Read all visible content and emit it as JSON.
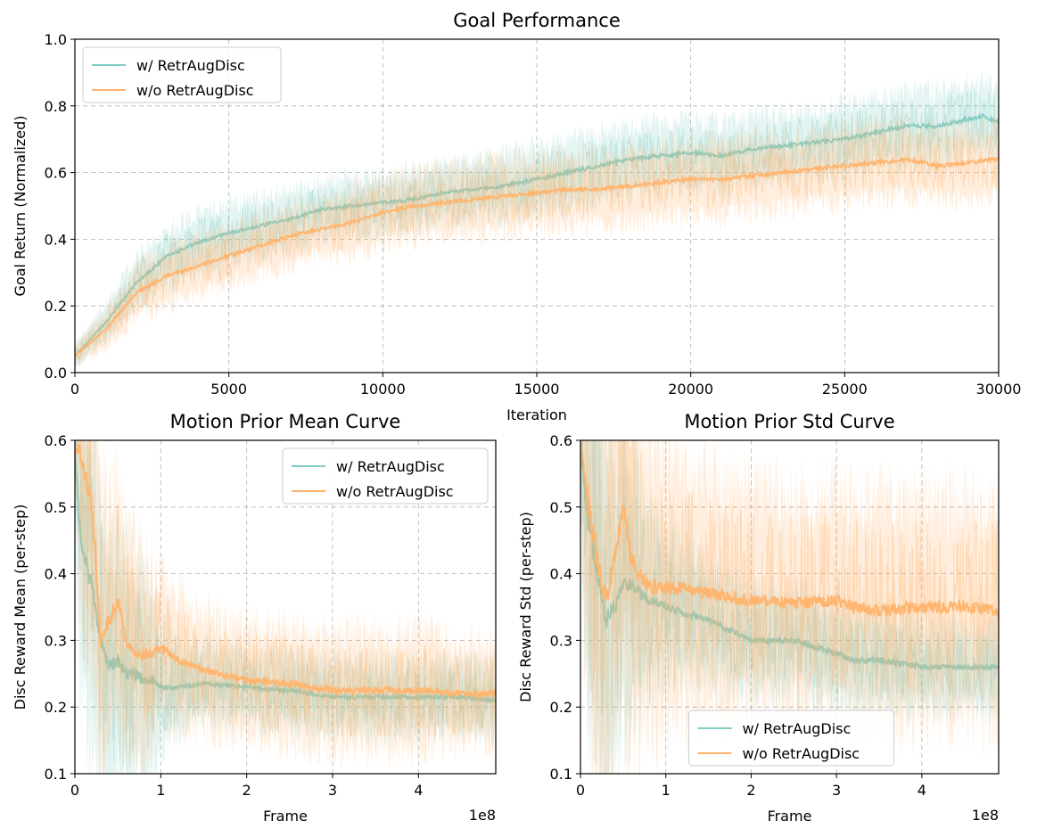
{
  "chart_data": [
    {
      "id": "goal",
      "type": "line",
      "title": "Goal Performance",
      "xlabel": "Iteration",
      "ylabel": "Goal Return (Normalized)",
      "xlim": [
        0,
        30000
      ],
      "ylim": [
        0,
        1.0
      ],
      "xticks": [
        0,
        5000,
        10000,
        15000,
        20000,
        25000,
        30000
      ],
      "xtick_labels": [
        "0",
        "5000",
        "10000",
        "15000",
        "20000",
        "25000",
        "30000"
      ],
      "yticks": [
        0,
        0.2,
        0.4,
        0.6,
        0.8,
        1.0
      ],
      "ytick_labels": [
        "0.0",
        "0.2",
        "0.4",
        "0.6",
        "0.8",
        "1.0"
      ],
      "x_offset_label": "",
      "grid": true,
      "legend_position": "upper-left",
      "series": [
        {
          "name": "w/ RetrAugDisc",
          "color": "#7ecbc4",
          "x": [
            0,
            1000,
            2000,
            3000,
            4000,
            5000,
            6000,
            7000,
            8000,
            9000,
            10000,
            11000,
            12000,
            13000,
            14000,
            15000,
            16000,
            17000,
            18000,
            19000,
            20000,
            21000,
            22000,
            23000,
            24000,
            25000,
            26000,
            27000,
            28000,
            29000,
            29500,
            30000
          ],
          "y": [
            0.05,
            0.15,
            0.27,
            0.35,
            0.39,
            0.42,
            0.44,
            0.46,
            0.49,
            0.5,
            0.51,
            0.52,
            0.54,
            0.55,
            0.56,
            0.58,
            0.6,
            0.62,
            0.64,
            0.65,
            0.66,
            0.65,
            0.67,
            0.68,
            0.69,
            0.7,
            0.72,
            0.74,
            0.74,
            0.76,
            0.77,
            0.75
          ],
          "band": [
            0.03,
            0.05,
            0.07,
            0.08,
            0.08,
            0.08,
            0.08,
            0.08,
            0.08,
            0.08,
            0.08,
            0.08,
            0.08,
            0.08,
            0.09,
            0.09,
            0.09,
            0.09,
            0.09,
            0.09,
            0.09,
            0.09,
            0.09,
            0.09,
            0.09,
            0.1,
            0.1,
            0.1,
            0.1,
            0.1,
            0.1,
            0.1
          ]
        },
        {
          "name": "w/o RetrAugDisc",
          "color": "#ffb36b",
          "x": [
            0,
            1000,
            2000,
            3000,
            4000,
            5000,
            6000,
            7000,
            8000,
            9000,
            10000,
            11000,
            12000,
            13000,
            14000,
            15000,
            16000,
            17000,
            18000,
            19000,
            20000,
            21000,
            22000,
            23000,
            24000,
            25000,
            26000,
            27000,
            28000,
            29000,
            30000
          ],
          "y": [
            0.05,
            0.13,
            0.24,
            0.29,
            0.32,
            0.35,
            0.38,
            0.41,
            0.43,
            0.45,
            0.48,
            0.5,
            0.51,
            0.52,
            0.53,
            0.54,
            0.55,
            0.55,
            0.56,
            0.57,
            0.58,
            0.58,
            0.59,
            0.6,
            0.61,
            0.62,
            0.63,
            0.64,
            0.62,
            0.63,
            0.64
          ],
          "band": [
            0.03,
            0.05,
            0.07,
            0.08,
            0.08,
            0.08,
            0.08,
            0.08,
            0.08,
            0.09,
            0.09,
            0.09,
            0.09,
            0.1,
            0.1,
            0.1,
            0.1,
            0.1,
            0.1,
            0.1,
            0.1,
            0.1,
            0.1,
            0.1,
            0.1,
            0.1,
            0.1,
            0.1,
            0.1,
            0.1,
            0.1
          ]
        }
      ]
    },
    {
      "id": "mean",
      "type": "line",
      "title": "Motion Prior Mean Curve",
      "xlabel": "Frame",
      "ylabel": "Disc Reward Mean (per-step)",
      "xlim": [
        0,
        4.9
      ],
      "ylim": [
        0.1,
        0.6
      ],
      "xticks": [
        0,
        1,
        2,
        3,
        4
      ],
      "xtick_labels": [
        "0",
        "1",
        "2",
        "3",
        "4"
      ],
      "yticks": [
        0.1,
        0.2,
        0.3,
        0.4,
        0.5,
        0.6
      ],
      "ytick_labels": [
        "0.1",
        "0.2",
        "0.3",
        "0.4",
        "0.5",
        "0.6"
      ],
      "x_offset_label": "1e8",
      "grid": true,
      "legend_position": "upper-right",
      "series": [
        {
          "name": "w/ RetrAugDisc",
          "color": "#7ecbc4",
          "x": [
            0,
            0.05,
            0.1,
            0.2,
            0.3,
            0.4,
            0.5,
            0.6,
            0.7,
            0.8,
            0.9,
            1.0,
            1.2,
            1.5,
            2.0,
            2.5,
            3.0,
            3.5,
            4.0,
            4.5,
            4.9
          ],
          "y": [
            0.58,
            0.48,
            0.43,
            0.38,
            0.3,
            0.26,
            0.27,
            0.25,
            0.25,
            0.24,
            0.24,
            0.23,
            0.23,
            0.235,
            0.23,
            0.225,
            0.215,
            0.215,
            0.215,
            0.215,
            0.21
          ],
          "band": [
            0.05,
            0.2,
            0.22,
            0.22,
            0.2,
            0.18,
            0.17,
            0.16,
            0.15,
            0.14,
            0.12,
            0.08,
            0.06,
            0.05,
            0.05,
            0.05,
            0.05,
            0.05,
            0.05,
            0.05,
            0.05
          ]
        },
        {
          "name": "w/o RetrAugDisc",
          "color": "#ffb36b",
          "x": [
            0,
            0.05,
            0.1,
            0.2,
            0.3,
            0.4,
            0.5,
            0.6,
            0.7,
            0.8,
            0.9,
            1.0,
            1.2,
            1.5,
            2.0,
            2.5,
            3.0,
            3.5,
            4.0,
            4.5,
            4.9
          ],
          "y": [
            0.58,
            0.59,
            0.56,
            0.5,
            0.3,
            0.33,
            0.36,
            0.3,
            0.28,
            0.28,
            0.28,
            0.29,
            0.27,
            0.255,
            0.24,
            0.235,
            0.225,
            0.225,
            0.225,
            0.22,
            0.22
          ],
          "band": [
            0.05,
            0.2,
            0.22,
            0.22,
            0.2,
            0.18,
            0.17,
            0.16,
            0.15,
            0.14,
            0.12,
            0.1,
            0.09,
            0.08,
            0.08,
            0.08,
            0.08,
            0.08,
            0.08,
            0.07,
            0.07
          ]
        }
      ]
    },
    {
      "id": "std",
      "type": "line",
      "title": "Motion Prior Std Curve",
      "xlabel": "Frame",
      "ylabel": "Disc Reward Std (per-step)",
      "xlim": [
        0,
        4.9
      ],
      "ylim": [
        0.1,
        0.6
      ],
      "xticks": [
        0,
        1,
        2,
        3,
        4
      ],
      "xtick_labels": [
        "0",
        "1",
        "2",
        "3",
        "4"
      ],
      "yticks": [
        0.1,
        0.2,
        0.3,
        0.4,
        0.5,
        0.6
      ],
      "ytick_labels": [
        "0.1",
        "0.2",
        "0.3",
        "0.4",
        "0.5",
        "0.6"
      ],
      "x_offset_label": "1e8",
      "grid": true,
      "legend_position": "lower-center",
      "series": [
        {
          "name": "w/ RetrAugDisc",
          "color": "#7ecbc4",
          "x": [
            0,
            0.05,
            0.1,
            0.2,
            0.3,
            0.4,
            0.5,
            0.6,
            0.7,
            0.8,
            1.0,
            1.5,
            2.0,
            2.5,
            3.0,
            3.2,
            3.5,
            4.0,
            4.5,
            4.9
          ],
          "y": [
            0.6,
            0.52,
            0.47,
            0.4,
            0.33,
            0.35,
            0.39,
            0.38,
            0.37,
            0.36,
            0.35,
            0.33,
            0.3,
            0.3,
            0.28,
            0.27,
            0.27,
            0.26,
            0.26,
            0.26
          ],
          "band": [
            0.1,
            0.22,
            0.3,
            0.3,
            0.25,
            0.22,
            0.2,
            0.18,
            0.16,
            0.12,
            0.1,
            0.08,
            0.07,
            0.07,
            0.07,
            0.07,
            0.07,
            0.06,
            0.06,
            0.06
          ]
        },
        {
          "name": "w/o RetrAugDisc",
          "color": "#ffb36b",
          "x": [
            0,
            0.05,
            0.1,
            0.2,
            0.3,
            0.4,
            0.5,
            0.6,
            0.7,
            0.8,
            1.0,
            1.5,
            2.0,
            2.5,
            3.0,
            3.2,
            3.5,
            4.0,
            4.5,
            4.9
          ],
          "y": [
            0.6,
            0.55,
            0.5,
            0.42,
            0.36,
            0.43,
            0.5,
            0.42,
            0.4,
            0.38,
            0.38,
            0.37,
            0.36,
            0.355,
            0.36,
            0.35,
            0.345,
            0.35,
            0.35,
            0.345
          ],
          "band": [
            0.1,
            0.25,
            0.3,
            0.3,
            0.28,
            0.28,
            0.26,
            0.24,
            0.22,
            0.2,
            0.18,
            0.16,
            0.15,
            0.15,
            0.15,
            0.15,
            0.15,
            0.15,
            0.15,
            0.15
          ]
        }
      ]
    }
  ]
}
